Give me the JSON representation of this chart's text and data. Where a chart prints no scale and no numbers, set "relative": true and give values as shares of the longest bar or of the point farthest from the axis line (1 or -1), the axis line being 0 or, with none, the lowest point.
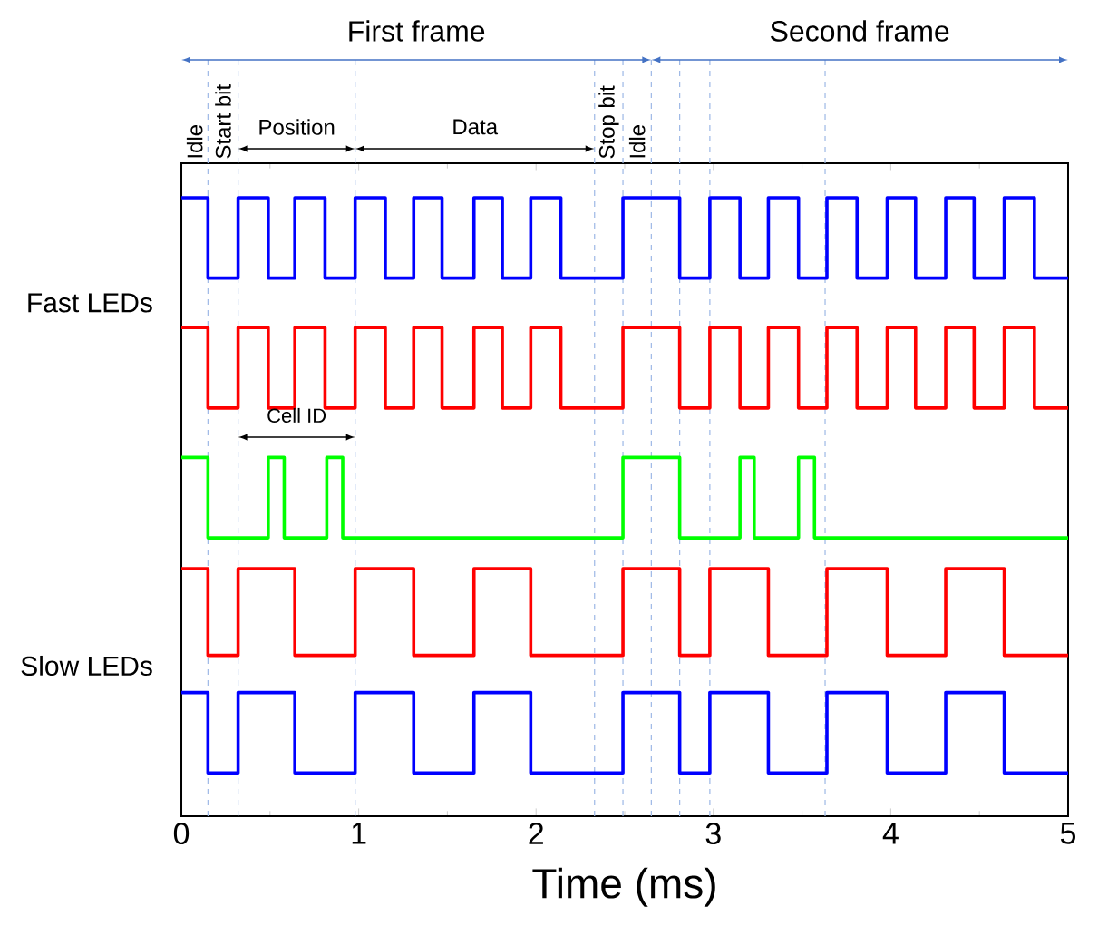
{
  "chart_data": {
    "type": "step",
    "relative": true,
    "xlabel": "Time (ms)",
    "xlim": [
      0,
      5
    ],
    "xticks": [
      0,
      1,
      2,
      3,
      4,
      5
    ],
    "series": [
      {
        "color": "#0000ff",
        "x": [
          0,
          0.15,
          0.32,
          0.49,
          0.64,
          0.81,
          0.98,
          1.15,
          1.31,
          1.47,
          1.65,
          1.81,
          1.97,
          2.14,
          2.49,
          2.81,
          2.98,
          3.15,
          3.31,
          3.48,
          3.64,
          3.81,
          3.98,
          4.14,
          4.31,
          4.47,
          4.64,
          4.81,
          5
        ],
        "values": [
          1,
          0.87,
          1,
          0.87,
          1,
          0.87,
          1,
          0.87,
          1,
          0.87,
          1,
          0.87,
          1,
          0.87,
          1,
          0.87,
          1,
          0.87,
          1,
          0.87,
          1,
          0.87,
          1,
          0.87,
          1,
          0.87,
          1,
          0.87,
          0.87
        ]
      },
      {
        "color": "#ff0000",
        "x": [
          0,
          0.15,
          0.32,
          0.49,
          0.64,
          0.81,
          0.98,
          1.15,
          1.31,
          1.47,
          1.65,
          1.81,
          1.97,
          2.14,
          2.49,
          2.81,
          2.98,
          3.15,
          3.31,
          3.48,
          3.64,
          3.81,
          3.98,
          4.14,
          4.31,
          4.47,
          4.64,
          4.81,
          5
        ],
        "values": [
          0.79,
          0.66,
          0.79,
          0.66,
          0.79,
          0.66,
          0.79,
          0.66,
          0.79,
          0.66,
          0.79,
          0.66,
          0.79,
          0.66,
          0.79,
          0.66,
          0.79,
          0.66,
          0.79,
          0.66,
          0.79,
          0.66,
          0.79,
          0.66,
          0.79,
          0.66,
          0.79,
          0.66,
          0.66
        ]
      },
      {
        "color": "#00ff00",
        "x": [
          0,
          0.15,
          0.49,
          0.58,
          0.82,
          0.91,
          2.49,
          2.81,
          3.15,
          3.23,
          3.48,
          3.57,
          5
        ],
        "values": [
          0.58,
          0.45,
          0.58,
          0.45,
          0.58,
          0.45,
          0.58,
          0.45,
          0.58,
          0.45,
          0.58,
          0.45,
          0.45
        ]
      },
      {
        "color": "#ff0000",
        "x": [
          0,
          0.15,
          0.32,
          0.64,
          0.98,
          1.31,
          1.65,
          1.97,
          2.49,
          2.81,
          2.98,
          3.31,
          3.64,
          3.98,
          4.31,
          4.64,
          5
        ],
        "values": [
          0.4,
          0.26,
          0.4,
          0.26,
          0.4,
          0.26,
          0.4,
          0.26,
          0.4,
          0.26,
          0.4,
          0.26,
          0.4,
          0.26,
          0.4,
          0.26,
          0.26
        ]
      },
      {
        "color": "#0000ff",
        "x": [
          0,
          0.15,
          0.32,
          0.64,
          0.98,
          1.31,
          1.65,
          1.97,
          2.49,
          2.81,
          2.98,
          3.31,
          3.64,
          3.98,
          4.31,
          4.64,
          5
        ],
        "values": [
          0.2,
          0.07,
          0.2,
          0.07,
          0.2,
          0.07,
          0.2,
          0.07,
          0.2,
          0.07,
          0.2,
          0.07,
          0.2,
          0.07,
          0.2,
          0.07,
          0.07
        ]
      }
    ],
    "ref_lines": [
      {
        "axis": "x",
        "value": 0.15,
        "color": "#9db8e6",
        "line_style": "dashed"
      },
      {
        "axis": "x",
        "value": 0.32,
        "color": "#9db8e6",
        "line_style": "dashed"
      },
      {
        "axis": "x",
        "value": 0.98,
        "color": "#9db8e6",
        "line_style": "dashed"
      },
      {
        "axis": "x",
        "value": 2.33,
        "color": "#9db8e6",
        "line_style": "dashed"
      },
      {
        "axis": "x",
        "value": 2.49,
        "color": "#9db8e6",
        "line_style": "dashed"
      },
      {
        "axis": "x",
        "value": 2.65,
        "color": "#9db8e6",
        "line_style": "dashed"
      },
      {
        "axis": "x",
        "value": 2.81,
        "color": "#9db8e6",
        "line_style": "dashed"
      },
      {
        "axis": "x",
        "value": 2.98,
        "color": "#9db8e6",
        "line_style": "dashed"
      },
      {
        "axis": "x",
        "value": 3.63,
        "color": "#9db8e6",
        "line_style": "dashed"
      }
    ],
    "annotations": [
      "First frame",
      "Second frame",
      "Idle",
      "Start bit",
      "Position",
      "Data",
      "Stop bit",
      "Idle",
      "Cell ID",
      "Fast LEDs",
      "Slow LEDs"
    ]
  }
}
